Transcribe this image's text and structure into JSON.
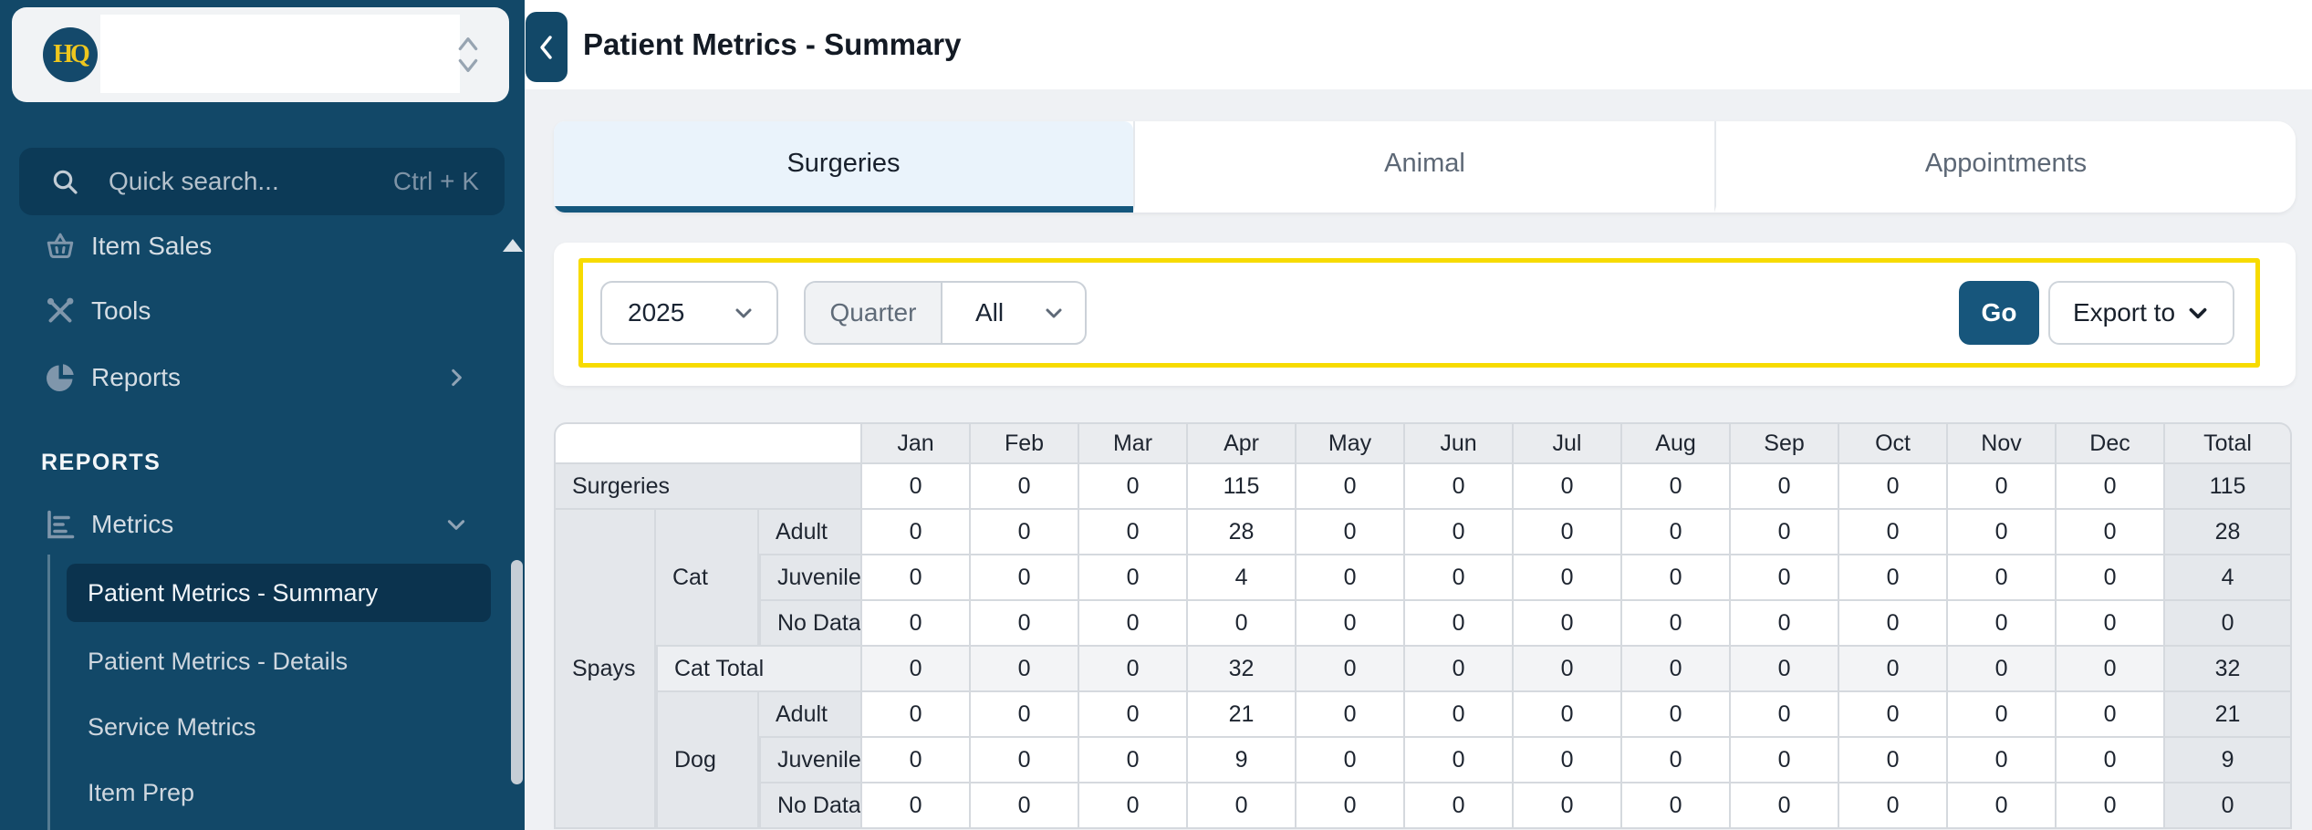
{
  "brand": {
    "logo_text": "HQ"
  },
  "sidebar": {
    "search": {
      "placeholder": "Quick search...",
      "shortcut": "Ctrl + K"
    },
    "menu": [
      {
        "label": "Item Sales",
        "icon": "basket-icon"
      },
      {
        "label": "Tools",
        "icon": "tools-icon"
      },
      {
        "label": "Reports",
        "icon": "pie-chart-icon"
      }
    ],
    "section_label": "REPORTS",
    "metrics_group": {
      "label": "Metrics",
      "icon": "bar-chart-icon"
    },
    "submenu": [
      {
        "label": "Patient Metrics - Summary",
        "active": true
      },
      {
        "label": "Patient Metrics - Details",
        "active": false
      },
      {
        "label": "Service Metrics",
        "active": false
      },
      {
        "label": "Item Prep",
        "active": false
      }
    ]
  },
  "header": {
    "title": "Patient Metrics - Summary"
  },
  "tabs": [
    {
      "label": "Surgeries",
      "active": true
    },
    {
      "label": "Animal",
      "active": false
    },
    {
      "label": "Appointments",
      "active": false
    }
  ],
  "filters": {
    "year_value": "2025",
    "quarter_label": "Quarter",
    "quarter_value": "All",
    "go_label": "Go",
    "export_label": "Export to"
  },
  "colors": {
    "sidebar": "#124868",
    "accent_blue": "#17567C",
    "active_tab_bg": "#EAF3FB",
    "highlight_yellow": "#F7DB00",
    "logo_yellow": "#EFC71E"
  },
  "table": {
    "columns": [
      "Jan",
      "Feb",
      "Mar",
      "Apr",
      "May",
      "Jun",
      "Jul",
      "Aug",
      "Sep",
      "Oct",
      "Nov",
      "Dec",
      "Total"
    ],
    "rows": [
      {
        "labels": [
          {
            "text": "Surgeries",
            "colspan": 3
          }
        ],
        "values": [
          0,
          0,
          0,
          115,
          0,
          0,
          0,
          0,
          0,
          0,
          0,
          0,
          115
        ]
      },
      {
        "labels": [
          {
            "text": "Spays",
            "rowspan": 7
          },
          {
            "text": "Cat",
            "rowspan": 3
          },
          {
            "text": "Adult"
          }
        ],
        "values": [
          0,
          0,
          0,
          28,
          0,
          0,
          0,
          0,
          0,
          0,
          0,
          0,
          28
        ]
      },
      {
        "labels": [
          {
            "text": "Juvenile"
          }
        ],
        "values": [
          0,
          0,
          0,
          4,
          0,
          0,
          0,
          0,
          0,
          0,
          0,
          0,
          4
        ]
      },
      {
        "labels": [
          {
            "text": "No Data"
          }
        ],
        "values": [
          0,
          0,
          0,
          0,
          0,
          0,
          0,
          0,
          0,
          0,
          0,
          0,
          0
        ]
      },
      {
        "cls": "total-row",
        "labels": [
          {
            "text": "Cat Total",
            "colspan": 2
          }
        ],
        "values": [
          0,
          0,
          0,
          32,
          0,
          0,
          0,
          0,
          0,
          0,
          0,
          0,
          32
        ]
      },
      {
        "labels": [
          {
            "text": "Dog",
            "rowspan": 3
          },
          {
            "text": "Adult"
          }
        ],
        "values": [
          0,
          0,
          0,
          21,
          0,
          0,
          0,
          0,
          0,
          0,
          0,
          0,
          21
        ]
      },
      {
        "labels": [
          {
            "text": "Juvenile"
          }
        ],
        "values": [
          0,
          0,
          0,
          9,
          0,
          0,
          0,
          0,
          0,
          0,
          0,
          0,
          9
        ]
      },
      {
        "labels": [
          {
            "text": "No Data"
          }
        ],
        "values": [
          0,
          0,
          0,
          0,
          0,
          0,
          0,
          0,
          0,
          0,
          0,
          0,
          0
        ]
      }
    ]
  }
}
